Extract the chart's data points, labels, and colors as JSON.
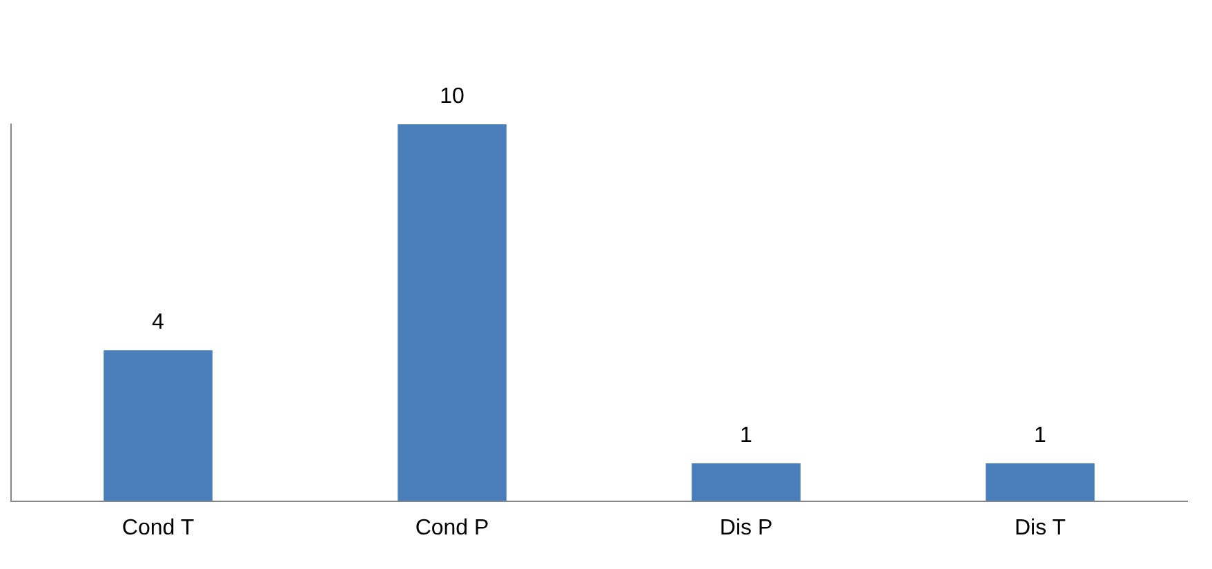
{
  "chart_data": {
    "type": "bar",
    "categories": [
      "Cond T",
      "Cond P",
      "Dis P",
      "Dis T"
    ],
    "values": [
      4,
      10,
      1,
      1
    ],
    "color": "#4a7ebb",
    "data_labels": true,
    "grid": false,
    "legend": false,
    "tick_labels": "x"
  }
}
